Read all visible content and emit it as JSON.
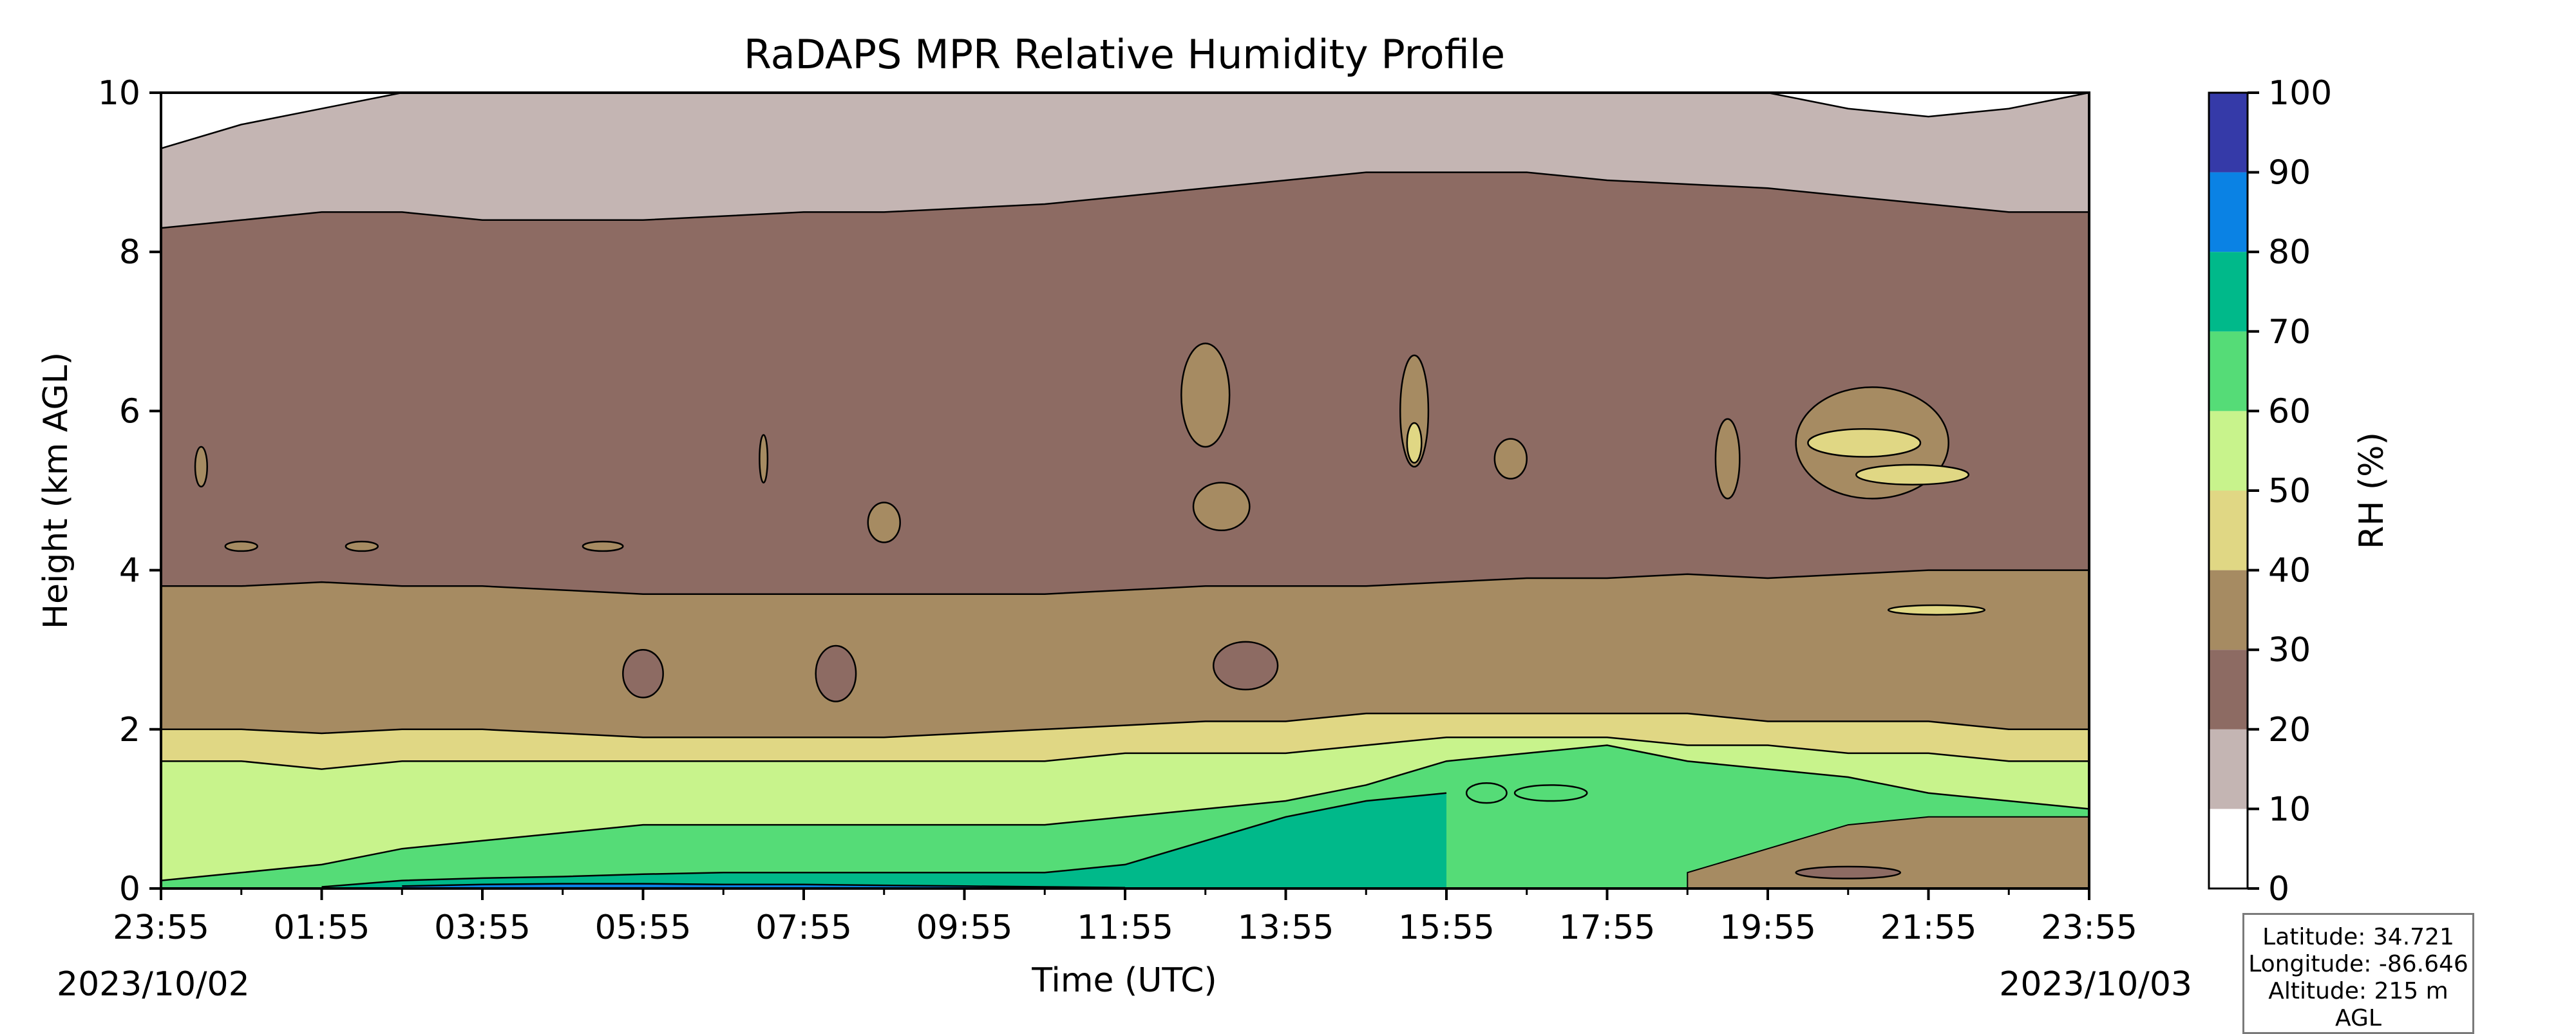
{
  "chart_data": {
    "type": "heatmap",
    "title": "RaDAPS MPR Relative Humidity Profile",
    "xlabel": "Time (UTC)",
    "ylabel": "Height (km AGL)",
    "x_tick_labels": [
      "23:55",
      "01:55",
      "03:55",
      "05:55",
      "07:55",
      "09:55",
      "11:55",
      "13:55",
      "15:55",
      "17:55",
      "19:55",
      "21:55",
      "23:55"
    ],
    "x_hours": [
      0,
      2,
      4,
      6,
      8,
      10,
      12,
      14,
      16,
      18,
      20,
      22,
      24
    ],
    "xlim_hours": [
      0,
      24
    ],
    "ylim": [
      0,
      10
    ],
    "y_ticks": [
      0,
      2,
      4,
      6,
      8,
      10
    ],
    "start_date": "2023/10/02",
    "end_date": "2023/10/03",
    "colorbar": {
      "label": "RH (%)",
      "ticks": [
        0,
        10,
        20,
        30,
        40,
        50,
        60,
        70,
        80,
        90,
        100
      ],
      "colors": [
        "#ffffff",
        "#c4b5b3",
        "#8d6b63",
        "#a68b62",
        "#e0d784",
        "#c8f38c",
        "#55dc77",
        "#00b98a",
        "#0a82e4",
        "#353aa8"
      ]
    },
    "isolines_rh": [
      {
        "level": 80,
        "x": [
          3,
          4,
          5,
          6,
          7,
          8,
          9,
          10,
          11,
          12
        ],
        "y": [
          0.03,
          0.05,
          0.06,
          0.06,
          0.05,
          0.05,
          0.04,
          0.03,
          0.02,
          0.01
        ]
      },
      {
        "level": 70,
        "x": [
          2,
          3,
          4,
          5,
          6,
          7,
          8,
          9,
          10,
          11,
          12,
          13,
          14,
          15,
          16
        ],
        "y": [
          0.02,
          0.1,
          0.13,
          0.15,
          0.18,
          0.2,
          0.2,
          0.2,
          0.2,
          0.2,
          0.3,
          0.6,
          0.9,
          1.1,
          1.2
        ]
      },
      {
        "level": 60,
        "x": [
          0,
          1,
          2,
          3,
          4,
          5,
          6,
          7,
          8,
          9,
          10,
          11,
          12,
          13,
          14,
          15,
          16,
          17,
          18,
          19,
          20,
          21,
          22,
          23,
          24
        ],
        "y": [
          0.1,
          0.2,
          0.3,
          0.5,
          0.6,
          0.7,
          0.8,
          0.8,
          0.8,
          0.8,
          0.8,
          0.8,
          0.9,
          1.0,
          1.1,
          1.3,
          1.6,
          1.7,
          1.8,
          1.6,
          1.5,
          1.4,
          1.2,
          1.1,
          1.0
        ]
      },
      {
        "level": 50,
        "x": [
          0,
          1,
          2,
          3,
          4,
          5,
          6,
          7,
          8,
          9,
          10,
          11,
          12,
          13,
          14,
          15,
          16,
          17,
          18,
          19,
          20,
          21,
          22,
          23,
          24
        ],
        "y": [
          1.6,
          1.6,
          1.5,
          1.6,
          1.6,
          1.6,
          1.6,
          1.6,
          1.6,
          1.6,
          1.6,
          1.6,
          1.7,
          1.7,
          1.7,
          1.8,
          1.9,
          1.9,
          1.9,
          1.8,
          1.8,
          1.7,
          1.7,
          1.6,
          1.6
        ]
      },
      {
        "level": 40,
        "x": [
          0,
          1,
          2,
          3,
          4,
          5,
          6,
          7,
          8,
          9,
          10,
          11,
          12,
          13,
          14,
          15,
          16,
          17,
          18,
          19,
          20,
          21,
          22,
          23,
          24
        ],
        "y": [
          2.0,
          2.0,
          1.95,
          2.0,
          2.0,
          1.95,
          1.9,
          1.9,
          1.9,
          1.9,
          1.95,
          2.0,
          2.05,
          2.1,
          2.1,
          2.2,
          2.2,
          2.2,
          2.2,
          2.2,
          2.1,
          2.1,
          2.1,
          2.0,
          2.0
        ]
      },
      {
        "level": 30,
        "x": [
          0,
          1,
          2,
          3,
          4,
          5,
          6,
          7,
          8,
          9,
          10,
          11,
          12,
          13,
          14,
          15,
          16,
          17,
          18,
          19,
          20,
          21,
          22,
          23,
          24
        ],
        "y": [
          3.8,
          3.8,
          3.85,
          3.8,
          3.8,
          3.75,
          3.7,
          3.7,
          3.7,
          3.7,
          3.7,
          3.7,
          3.75,
          3.8,
          3.8,
          3.8,
          3.85,
          3.9,
          3.9,
          3.95,
          3.9,
          3.95,
          4.0,
          4.0,
          4.0
        ]
      },
      {
        "level": 20,
        "x": [
          0,
          1,
          2,
          3,
          4,
          5,
          6,
          7,
          8,
          9,
          10,
          11,
          12,
          13,
          14,
          15,
          16,
          17,
          18,
          19,
          20,
          21,
          22,
          23,
          24
        ],
        "y": [
          8.3,
          8.4,
          8.5,
          8.5,
          8.4,
          8.4,
          8.4,
          8.45,
          8.5,
          8.5,
          8.55,
          8.6,
          8.7,
          8.8,
          8.9,
          9.0,
          9.0,
          9.0,
          8.9,
          8.85,
          8.8,
          8.7,
          8.6,
          8.5,
          8.5
        ]
      },
      {
        "level": 10,
        "x": [
          0,
          1,
          2,
          3,
          4,
          5,
          6,
          7,
          8,
          9,
          10,
          11,
          12,
          13,
          14,
          15,
          16,
          17,
          18,
          19,
          20,
          21,
          22,
          23,
          24
        ],
        "y": [
          9.3,
          9.6,
          9.8,
          10.0,
          10.0,
          10.0,
          10.0,
          10.0,
          10.0,
          10.0,
          10.0,
          10.0,
          10.0,
          10.0,
          10.0,
          10.0,
          10.0,
          10.0,
          10.0,
          10.0,
          10.0,
          9.8,
          9.7,
          9.8,
          10.0
        ]
      }
    ],
    "moist_cells": [
      {
        "x": 0.5,
        "y": 5.3,
        "dx": 0.15,
        "dy": 0.5,
        "rh": 35
      },
      {
        "x": 1.0,
        "y": 4.3,
        "dx": 0.4,
        "dy": 0.12,
        "rh": 35
      },
      {
        "x": 2.5,
        "y": 4.3,
        "dx": 0.4,
        "dy": 0.12,
        "rh": 35
      },
      {
        "x": 5.5,
        "y": 4.3,
        "dx": 0.5,
        "dy": 0.12,
        "rh": 35
      },
      {
        "x": 7.5,
        "y": 5.4,
        "dx": 0.1,
        "dy": 0.6,
        "rh": 35
      },
      {
        "x": 9.0,
        "y": 4.6,
        "dx": 0.4,
        "dy": 0.5,
        "rh": 35
      },
      {
        "x": 13.0,
        "y": 6.2,
        "dx": 0.6,
        "dy": 1.3,
        "rh": 35
      },
      {
        "x": 13.2,
        "y": 4.8,
        "dx": 0.7,
        "dy": 0.6,
        "rh": 35
      },
      {
        "x": 15.6,
        "y": 6.0,
        "dx": 0.35,
        "dy": 1.4,
        "rh": 35
      },
      {
        "x": 15.6,
        "y": 5.6,
        "dx": 0.18,
        "dy": 0.5,
        "rh": 45
      },
      {
        "x": 16.8,
        "y": 5.4,
        "dx": 0.4,
        "dy": 0.5,
        "rh": 35
      },
      {
        "x": 19.5,
        "y": 5.4,
        "dx": 0.3,
        "dy": 1.0,
        "rh": 35
      },
      {
        "x": 21.3,
        "y": 5.6,
        "dx": 1.9,
        "dy": 1.4,
        "rh": 35
      },
      {
        "x": 21.2,
        "y": 5.6,
        "dx": 1.4,
        "dy": 0.35,
        "rh": 45
      },
      {
        "x": 21.8,
        "y": 5.2,
        "dx": 1.4,
        "dy": 0.25,
        "rh": 45
      },
      {
        "x": 22.1,
        "y": 3.5,
        "dx": 1.2,
        "dy": 0.12,
        "rh": 45
      },
      {
        "x": 16.5,
        "y": 1.2,
        "dx": 0.5,
        "dy": 0.25,
        "rh": 65
      },
      {
        "x": 17.3,
        "y": 1.2,
        "dx": 0.9,
        "dy": 0.2,
        "rh": 65
      },
      {
        "x": 6.0,
        "y": 2.7,
        "dx": 0.5,
        "dy": 0.6,
        "rh": 25
      },
      {
        "x": 8.4,
        "y": 2.7,
        "dx": 0.5,
        "dy": 0.7,
        "rh": 25
      },
      {
        "x": 13.5,
        "y": 2.8,
        "dx": 0.8,
        "dy": 0.6,
        "rh": 25
      },
      {
        "x": 21.0,
        "y": 0.2,
        "dx": 1.3,
        "dy": 0.15,
        "rh": 25
      }
    ],
    "lower_band_dip": {
      "x": [
        19,
        20,
        21,
        22,
        23,
        24
      ],
      "y": [
        0.2,
        0.5,
        0.8,
        0.9,
        0.9,
        0.9
      ]
    },
    "grid": false,
    "legend": "none"
  },
  "info": {
    "latitude": "Latitude: 34.721",
    "longitude": "Longitude: -86.646",
    "altitude": "Altitude: 215 m AGL"
  }
}
